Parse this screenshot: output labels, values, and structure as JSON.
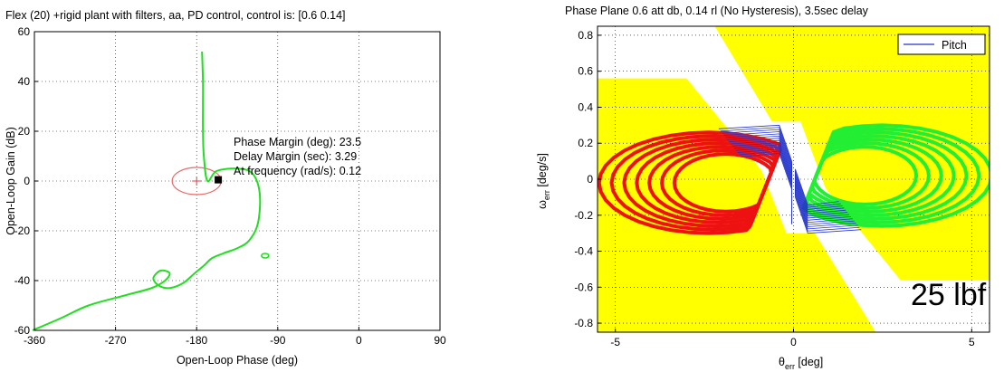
{
  "chart_data": [
    {
      "type": "line",
      "title": "Flex (20) +rigid plant with filters, aa, PD control, control is: [0.6          0.14]",
      "xlabel": "Open-Loop Phase (deg)",
      "ylabel": "Open-Loop Gain (dB)",
      "xlim": [
        -360,
        90
      ],
      "ylim": [
        -60,
        60
      ],
      "xticks": [
        -360,
        -270,
        -180,
        -90,
        0,
        90
      ],
      "yticks": [
        60,
        40,
        20,
        0,
        -20,
        -40,
        -60
      ],
      "grid": "dotted",
      "colors": {
        "curve": "#22dd22",
        "margin_circle": "#e86a6a",
        "critical_point": "#e04040",
        "margin_marker": "#000000"
      },
      "series": [
        {
          "values": [
            [
              -362,
              -60
            ],
            [
              -330,
              -55
            ],
            [
              -300,
              -50
            ],
            [
              -260,
              -46
            ],
            [
              -230,
              -43
            ],
            [
              -215,
              -40
            ],
            [
              -210,
              -37
            ],
            [
              -220,
              -36
            ],
            [
              -228,
              -39
            ],
            [
              -222,
              -42
            ],
            [
              -210,
              -43
            ],
            [
              -195,
              -41
            ],
            [
              -182,
              -37
            ],
            [
              -172,
              -34
            ],
            [
              -163,
              -31
            ],
            [
              -150,
              -29
            ],
            [
              -135,
              -27
            ],
            [
              -122,
              -24
            ],
            [
              -112,
              -17
            ],
            [
              -110,
              -5
            ],
            [
              -118,
              3
            ],
            [
              -135,
              5
            ],
            [
              -158,
              4
            ],
            [
              -168,
              0
            ],
            [
              -172,
              10
            ],
            [
              -173,
              20
            ],
            [
              -173,
              30
            ],
            [
              -173,
              40
            ],
            [
              -174,
              52
            ]
          ]
        }
      ],
      "markers": {
        "critical_point": [
          -180,
          0
        ],
        "margin_point": [
          -156,
          0.5
        ]
      },
      "annotations": [
        "Phase Margin (deg): 23.5",
        "Delay Margin (sec): 3.29",
        "At frequency (rad/s): 0.12"
      ]
    },
    {
      "type": "line",
      "title": "Phase Plane 0.6 att db, 0.14 rl (No Hysteresis), 3.5sec delay",
      "xlabel_main": "θ",
      "xlabel_sub": "err",
      "xlabel_unit": " [deg]",
      "ylabel_main": "ω",
      "ylabel_sub": "err",
      "ylabel_unit": " [deg/s]",
      "xlim": [
        -5.5,
        5.5
      ],
      "ylim": [
        -0.85,
        0.85
      ],
      "xticks": [
        -5,
        0,
        5
      ],
      "yticks": [
        0.8,
        0.6,
        0.4,
        0.2,
        0,
        -0.2,
        -0.4,
        -0.6,
        -0.8
      ],
      "grid": "dotted",
      "legend": {
        "position": "top-right",
        "entries": [
          {
            "name": "Pitch",
            "color": "#2233cc"
          }
        ]
      },
      "colors": {
        "background": "#ffff00",
        "deadband": "#ffffff",
        "negative_firing": "#ee1111",
        "positive_firing": "#22ee33",
        "trajectory": "#2233cc"
      },
      "annotation_large": "25 lbf"
    }
  ]
}
